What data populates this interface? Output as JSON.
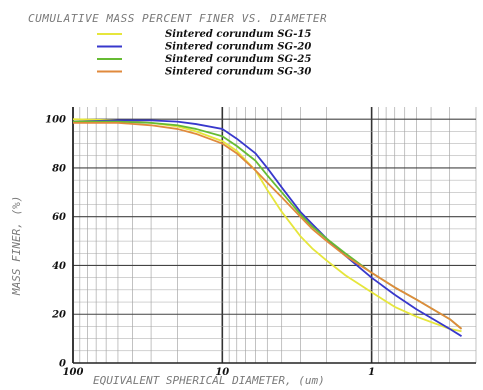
{
  "chart_data": {
    "type": "line",
    "title": "CUMULATIVE MASS PERCENT FINER VS. DIAMETER",
    "xlabel": "EQUIVALENT SPHERICAL DIAMETER, (um)",
    "ylabel": "MASS FINER, (%)",
    "x_scale": "log",
    "x_reversed": true,
    "xlim": [
      100,
      0.2
    ],
    "ylim": [
      0,
      105
    ],
    "x_ticks": [
      "100",
      "10",
      "1"
    ],
    "y_ticks": [
      "0",
      "20",
      "40",
      "60",
      "80",
      "100"
    ],
    "grid": true,
    "legend_position": "top",
    "series": [
      {
        "name": "Sintered corundum SG-15",
        "color": "#e6e63c",
        "x": [
          100,
          50,
          30,
          20,
          15,
          10,
          8,
          6,
          5,
          4,
          3,
          2.5,
          2,
          1.5,
          1,
          0.7,
          0.5,
          0.3,
          0.25
        ],
        "y": [
          100,
          99.5,
          98.5,
          97,
          95,
          91,
          87,
          79,
          71,
          62,
          52,
          47,
          42,
          36,
          29,
          23,
          19,
          14,
          13
        ]
      },
      {
        "name": "Sintered corundum SG-20",
        "color": "#3838cc",
        "x": [
          100,
          50,
          30,
          20,
          15,
          10,
          8,
          6,
          5,
          4,
          3,
          2.5,
          2,
          1.5,
          1,
          0.7,
          0.5,
          0.3,
          0.25
        ],
        "y": [
          99,
          99.5,
          99.5,
          99,
          98,
          96,
          92,
          86,
          80,
          72,
          62,
          57,
          51,
          44,
          35,
          28,
          22,
          14,
          11
        ]
      },
      {
        "name": "Sintered corundum SG-25",
        "color": "#66bb33",
        "x": [
          100,
          50,
          30,
          20,
          15,
          10,
          8,
          6,
          5,
          4,
          3,
          2.5,
          2,
          1.5,
          1,
          0.7,
          0.5,
          0.3,
          0.25
        ],
        "y": [
          99,
          99,
          98.5,
          97.5,
          96,
          93,
          89,
          83,
          77,
          70,
          61,
          56,
          51,
          45,
          37,
          31,
          26,
          18,
          14
        ]
      },
      {
        "name": "Sintered corundum SG-30",
        "color": "#e08a3c",
        "x": [
          100,
          50,
          30,
          20,
          15,
          10,
          8,
          6,
          5,
          4,
          3,
          2.5,
          2,
          1.5,
          1,
          0.7,
          0.5,
          0.3,
          0.25
        ],
        "y": [
          98.5,
          98.5,
          97.5,
          96,
          94,
          90,
          86,
          79,
          74,
          68,
          60,
          55,
          50,
          44,
          37,
          31,
          26,
          18,
          14
        ]
      }
    ]
  }
}
